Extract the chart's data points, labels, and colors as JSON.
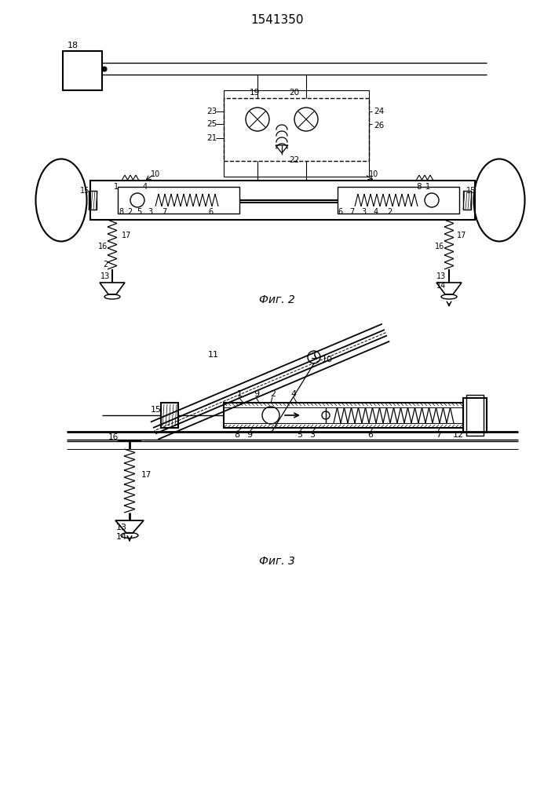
{
  "title": "1541350",
  "fig2_label": "Фиг. 2",
  "fig3_label": "Фиг. 3",
  "bg_color": "#ffffff",
  "line_color": "#000000",
  "fig_width": 7.07,
  "fig_height": 10.0
}
